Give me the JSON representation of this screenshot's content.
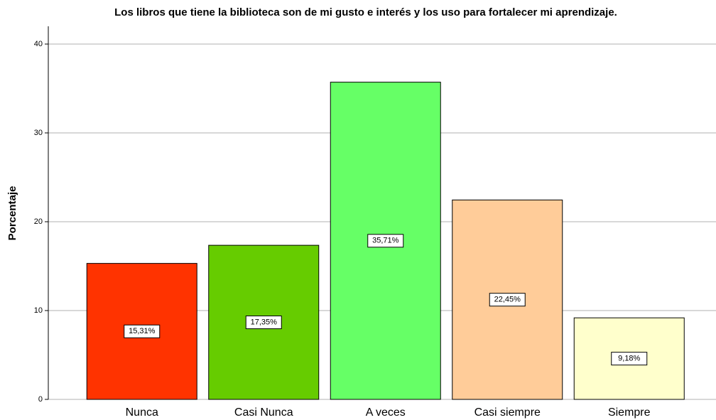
{
  "chart_data": {
    "type": "bar",
    "title": "Los libros que tiene la biblioteca son de mi gusto e interés y los uso para fortalecer mi aprendizaje.",
    "y_label": "Porcentaje",
    "categories": [
      "Nunca",
      "Casi Nunca",
      "A veces",
      "Casi siempre",
      "Siempre"
    ],
    "values": [
      15.31,
      17.35,
      35.71,
      22.45,
      9.18
    ],
    "value_labels": [
      "15,31%",
      "17,35%",
      "35,71%",
      "22,45%",
      "9,18%"
    ],
    "colors": [
      "#ff3300",
      "#66cc00",
      "#66ff66",
      "#ffcc99",
      "#ffffcc"
    ],
    "ylim": [
      0,
      42
    ],
    "yticks": [
      0,
      10,
      20,
      30,
      40
    ],
    "grid": true
  }
}
